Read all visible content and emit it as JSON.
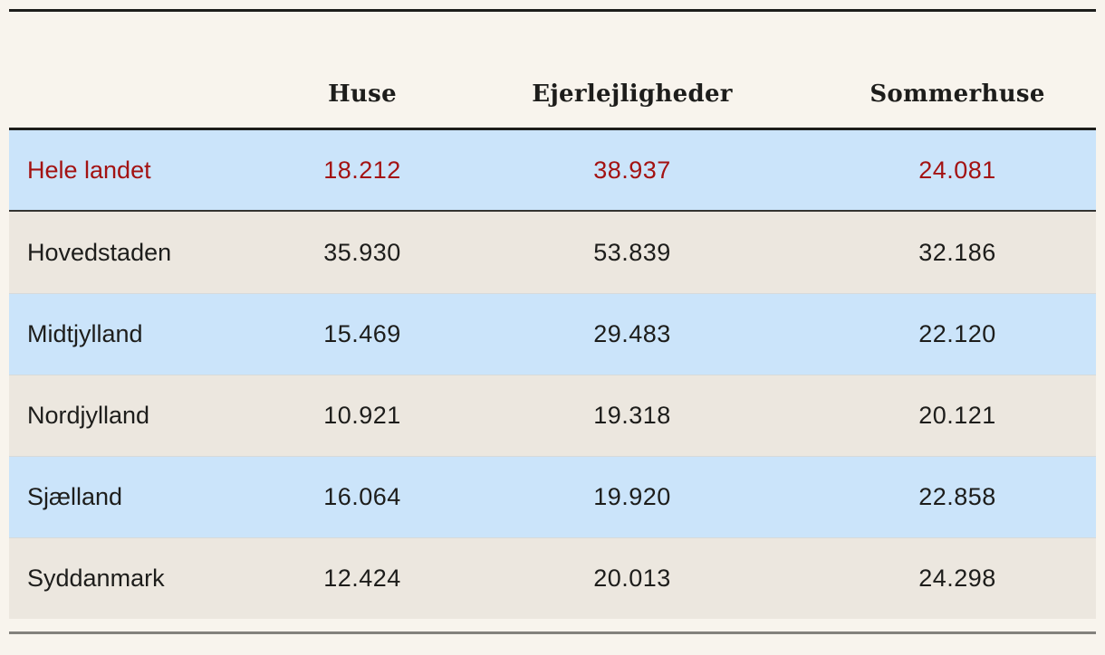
{
  "chart_data": {
    "type": "table",
    "columns": [
      "",
      "Huse",
      "Ejerlejligheder",
      "Sommerhuse"
    ],
    "rows": [
      {
        "label": "Hele landet",
        "values": [
          "18.212",
          "38.937",
          "24.081"
        ],
        "is_total": true
      },
      {
        "label": "Hovedstaden",
        "values": [
          "35.930",
          "53.839",
          "32.186"
        ],
        "is_total": false
      },
      {
        "label": "Midtjylland",
        "values": [
          "15.469",
          "29.483",
          "22.120"
        ],
        "is_total": false
      },
      {
        "label": "Nordjylland",
        "values": [
          "10.921",
          "19.318",
          "20.121"
        ],
        "is_total": false
      },
      {
        "label": "Sjælland",
        "values": [
          "16.064",
          "19.920",
          "22.858"
        ],
        "is_total": false
      },
      {
        "label": "Syddanmark",
        "values": [
          "12.424",
          "20.013",
          "24.298"
        ],
        "is_total": false
      }
    ]
  },
  "colors": {
    "page_background": "#f8f4ed",
    "row_blue": "#cbe4fa",
    "row_sand": "#ece7df",
    "text": "#1d1d1b",
    "total_text": "#a31212",
    "rule_dark": "#1d1d1b",
    "total_separator": "#343431",
    "bottom_rule": "#83817c",
    "row_divider": "#d6dadb"
  }
}
